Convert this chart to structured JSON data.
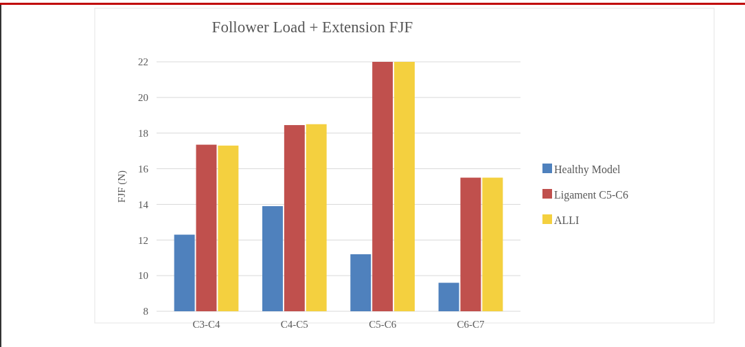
{
  "chart_data": {
    "type": "bar",
    "title": "Follower Load + Extension FJF",
    "ylabel": "FJF (N)",
    "categories": [
      "C3-C4",
      "C4-C5",
      "C5-C6",
      "C6-C7"
    ],
    "series": [
      {
        "name": "Healthy Model",
        "color": "#4f81bd",
        "values": [
          12.3,
          13.9,
          11.2,
          9.6
        ]
      },
      {
        "name": "Ligament C5-C6",
        "color": "#c0504d",
        "values": [
          17.35,
          18.45,
          22.0,
          15.5
        ]
      },
      {
        "name": "ALLI",
        "color": "#f4d03f",
        "values": [
          17.3,
          18.5,
          22.0,
          15.5
        ]
      }
    ],
    "ylim": [
      8,
      22
    ],
    "yticks": [
      8,
      10,
      12,
      14,
      16,
      18,
      20,
      22
    ],
    "grid": "y",
    "legend": "right"
  }
}
